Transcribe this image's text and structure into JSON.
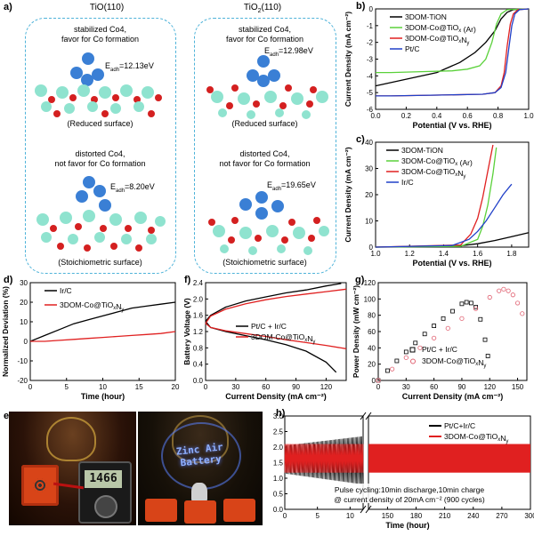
{
  "panel_a": {
    "letter": "a)",
    "col_left_title": "TiO(110)",
    "col_right_title": "TiO2(110)",
    "structures": [
      {
        "caption_1": "stabilized Co4,",
        "caption_2": "favor for Co formation",
        "energy": "Eadh=12.13eV",
        "surface": "(Reduced surface)"
      },
      {
        "caption_1": "stabilized Co4,",
        "caption_2": "favor for Co formation",
        "energy": "Eadh=12.98eV",
        "surface": "(Reduced surface)"
      },
      {
        "caption_1": "distorted Co4,",
        "caption_2": "not favor for Co formation",
        "energy": "Eadh=8.20eV",
        "surface": "(Stoichiometric surface)"
      },
      {
        "caption_1": "distorted Co4,",
        "caption_2": "not favor for Co formation",
        "energy": "Eadh=19.65eV",
        "surface": "(Stoichiometric surface)"
      }
    ],
    "colors": {
      "box": "#4fb3d9",
      "co": "#3a7fd5",
      "ti": "#8fe3cf",
      "o": "#d42020"
    }
  },
  "panel_e": {
    "letter": "e)",
    "meter_reading": "1466",
    "sign_text": "Zinc Air Battery"
  },
  "chart_data": [
    {
      "panel": "b)",
      "type": "line",
      "xlabel": "Potential (V vs. RHE)",
      "ylabel": "Current Density (mA cm⁻²)",
      "xlim": [
        0.0,
        1.0
      ],
      "ylim": [
        -6,
        0
      ],
      "xticks": [
        "0.0",
        "0.2",
        "0.4",
        "0.6",
        "0.8",
        "1.0"
      ],
      "yticks": [
        "0",
        "-1",
        "-2",
        "-3",
        "-4",
        "-5",
        "-6"
      ],
      "legend": "top-left",
      "series": [
        {
          "name": "3DOM-TiON",
          "color": "#000000",
          "x": [
            0.0,
            0.05,
            0.2,
            0.4,
            0.55,
            0.65,
            0.72,
            0.78,
            0.82,
            0.86,
            0.9,
            1.0
          ],
          "y": [
            -4.6,
            -4.5,
            -4.2,
            -3.8,
            -3.2,
            -2.6,
            -2.0,
            -1.3,
            -0.6,
            -0.2,
            -0.05,
            0.0
          ]
        },
        {
          "name": "3DOM-Co@TiOx (Ar)",
          "color": "#5ad13a",
          "x": [
            0.0,
            0.1,
            0.3,
            0.5,
            0.6,
            0.68,
            0.72,
            0.76,
            0.79,
            0.82,
            0.86,
            1.0
          ],
          "y": [
            -3.8,
            -3.8,
            -3.75,
            -3.7,
            -3.6,
            -3.4,
            -3.0,
            -2.0,
            -0.9,
            -0.3,
            -0.05,
            0.0
          ]
        },
        {
          "name": "3DOM-Co@TiOxNy",
          "color": "#e02020",
          "x": [
            0.0,
            0.1,
            0.4,
            0.7,
            0.78,
            0.82,
            0.84,
            0.86,
            0.88,
            0.9,
            0.93,
            1.0
          ],
          "y": [
            -5.2,
            -5.2,
            -5.15,
            -5.1,
            -5.0,
            -4.6,
            -3.8,
            -2.2,
            -0.9,
            -0.3,
            -0.05,
            0.0
          ]
        },
        {
          "name": "Pt/C",
          "color": "#2040c8",
          "x": [
            0.0,
            0.1,
            0.4,
            0.7,
            0.78,
            0.82,
            0.85,
            0.87,
            0.89,
            0.91,
            0.94,
            1.0
          ],
          "y": [
            -5.2,
            -5.2,
            -5.15,
            -5.1,
            -5.0,
            -4.7,
            -3.8,
            -2.4,
            -1.0,
            -0.3,
            -0.05,
            0.0
          ]
        }
      ]
    },
    {
      "panel": "c)",
      "type": "line",
      "xlabel": "Potential (V vs. RHE)",
      "ylabel": "Current Density (mA cm⁻²)",
      "xlim": [
        1.0,
        1.9
      ],
      "ylim": [
        0,
        40
      ],
      "xticks": [
        "1.0",
        "1.2",
        "1.4",
        "1.6",
        "1.8"
      ],
      "yticks": [
        "0",
        "10",
        "20",
        "30",
        "40"
      ],
      "legend": "top-left",
      "series": [
        {
          "name": "3DOM-TiON",
          "color": "#000000",
          "x": [
            1.0,
            1.3,
            1.5,
            1.6,
            1.7,
            1.8,
            1.9
          ],
          "y": [
            0,
            0.1,
            0.5,
            1.3,
            2.5,
            4.0,
            5.5
          ]
        },
        {
          "name": "3DOM-Co@TiOx (Ar)",
          "color": "#5ad13a",
          "x": [
            1.0,
            1.5,
            1.6,
            1.63,
            1.66,
            1.69,
            1.71
          ],
          "y": [
            0,
            0.3,
            3,
            8,
            16,
            28,
            38
          ]
        },
        {
          "name": "3DOM-Co@TiOxNy",
          "color": "#e02020",
          "x": [
            1.0,
            1.5,
            1.56,
            1.6,
            1.63,
            1.66,
            1.69
          ],
          "y": [
            0,
            0.8,
            5,
            11,
            19,
            29,
            39
          ]
        },
        {
          "name": "Ir/C",
          "color": "#2040c8",
          "x": [
            1.0,
            1.45,
            1.55,
            1.6,
            1.65,
            1.7,
            1.75,
            1.8
          ],
          "y": [
            0,
            0.6,
            3,
            6,
            10,
            15,
            20,
            24
          ]
        }
      ]
    },
    {
      "panel": "d)",
      "type": "line",
      "xlabel": "Time (hour)",
      "ylabel": "Normalized Deviation (%)",
      "xlim": [
        0,
        20
      ],
      "ylim": [
        -20,
        30
      ],
      "xticks": [
        "0",
        "5",
        "10",
        "15",
        "20"
      ],
      "yticks": [
        "-20",
        "-10",
        "0",
        "10",
        "20",
        "30"
      ],
      "legend": "top-left",
      "series": [
        {
          "name": "Ir/C",
          "color": "#000000",
          "x": [
            0,
            2,
            4,
            6,
            8,
            10,
            12,
            14,
            16,
            18,
            20
          ],
          "y": [
            0,
            3,
            6,
            9,
            11,
            13,
            15,
            17,
            18,
            19,
            20
          ]
        },
        {
          "name": "3DOM-Co@TiOxNy",
          "color": "#e02020",
          "x": [
            0,
            2,
            4,
            6,
            8,
            10,
            12,
            14,
            16,
            18,
            20
          ],
          "y": [
            0,
            0,
            0.5,
            1,
            1.5,
            2,
            2.5,
            3,
            3.5,
            4,
            5
          ]
        }
      ]
    },
    {
      "panel": "f)",
      "type": "line",
      "xlabel": "Current Density (mA cm⁻²)",
      "ylabel": "Battery Voltage (V)",
      "xlim": [
        0,
        140
      ],
      "ylim": [
        0.0,
        2.4
      ],
      "xticks": [
        "0",
        "30",
        "60",
        "90",
        "120"
      ],
      "yticks": [
        "0.0",
        "0.4",
        "0.8",
        "1.2",
        "1.6",
        "2.0",
        "2.4"
      ],
      "legend": "center-right",
      "series": [
        {
          "name": "Pt/C + Ir/C",
          "color": "#000000",
          "x": [
            0,
            5,
            20,
            40,
            60,
            80,
            100,
            120,
            130,
            0,
            5,
            20,
            40,
            60,
            80,
            100,
            120,
            135
          ],
          "y": [
            1.45,
            1.3,
            1.2,
            1.1,
            1.0,
            0.88,
            0.72,
            0.45,
            0.2,
            1.45,
            1.6,
            1.8,
            1.95,
            2.05,
            2.15,
            2.22,
            2.32,
            2.38
          ]
        },
        {
          "name": "3DOM-Co@TiOxNy",
          "color": "#e02020",
          "x": [
            0,
            5,
            20,
            40,
            60,
            80,
            100,
            120,
            140,
            0,
            5,
            20,
            40,
            60,
            80,
            100,
            120,
            140
          ],
          "y": [
            1.4,
            1.3,
            1.22,
            1.15,
            1.08,
            1.0,
            0.93,
            0.86,
            0.78,
            1.4,
            1.58,
            1.75,
            1.88,
            1.98,
            2.06,
            2.12,
            2.18,
            2.24
          ]
        }
      ]
    },
    {
      "panel": "g)",
      "type": "scatter",
      "xlabel": "Current Density (mA cm⁻²)",
      "ylabel": "Power Density (mW cm⁻²)",
      "xlim": [
        0,
        160
      ],
      "ylim": [
        0,
        120
      ],
      "xticks": [
        "0",
        "30",
        "60",
        "90",
        "120",
        "150"
      ],
      "yticks": [
        "0",
        "20",
        "40",
        "60",
        "80",
        "100",
        "120"
      ],
      "legend": "bottom-center",
      "series": [
        {
          "name": "Pt/C + Ir/C",
          "color": "#000000",
          "x": [
            0,
            10,
            20,
            30,
            40,
            50,
            60,
            70,
            80,
            90,
            95,
            100,
            105,
            110,
            115,
            118
          ],
          "y": [
            0,
            12,
            24,
            35,
            46,
            57,
            67,
            76,
            85,
            94,
            96,
            95,
            90,
            75,
            50,
            30
          ]
        },
        {
          "name": "3DOM-Co@TiOxNy",
          "color": "#e06070",
          "x": [
            0,
            15,
            30,
            45,
            60,
            75,
            90,
            105,
            120,
            130,
            135,
            140,
            145,
            150,
            155
          ],
          "y": [
            0,
            14,
            28,
            40,
            52,
            64,
            76,
            88,
            102,
            110,
            112,
            110,
            105,
            95,
            82
          ]
        }
      ]
    },
    {
      "panel": "h)",
      "type": "line",
      "xlabel": "Time (hour)",
      "ylabel": "Battery Voltage (V)",
      "xlim_left": [
        0,
        12
      ],
      "xlim_right": [
        130,
        300
      ],
      "ylim": [
        0.0,
        3.0
      ],
      "xticks_left": [
        "0",
        "5",
        "10"
      ],
      "xticks_right": [
        "150",
        "180",
        "210",
        "240",
        "270",
        "300"
      ],
      "yticks": [
        "0.0",
        "0.5",
        "1.0",
        "1.5",
        "2.0",
        "2.5",
        "3.0"
      ],
      "legend": "top-right",
      "annotation_1": "Pulse cycling:10min discharge,10min charge",
      "annotation_2": "@ current density of 20mA cm⁻² (900 cycles)",
      "series": [
        {
          "name": "Pt/C+Ir/C",
          "color": "#000000",
          "charge_start": 2.05,
          "charge_end": 2.35,
          "discharge_start": 1.15,
          "discharge_end": 0.8,
          "x_end": 12
        },
        {
          "name": "3DOM-Co@TiOxNy",
          "color": "#e02020",
          "charge": 2.1,
          "discharge": 1.18,
          "x_end": 300
        }
      ]
    }
  ]
}
